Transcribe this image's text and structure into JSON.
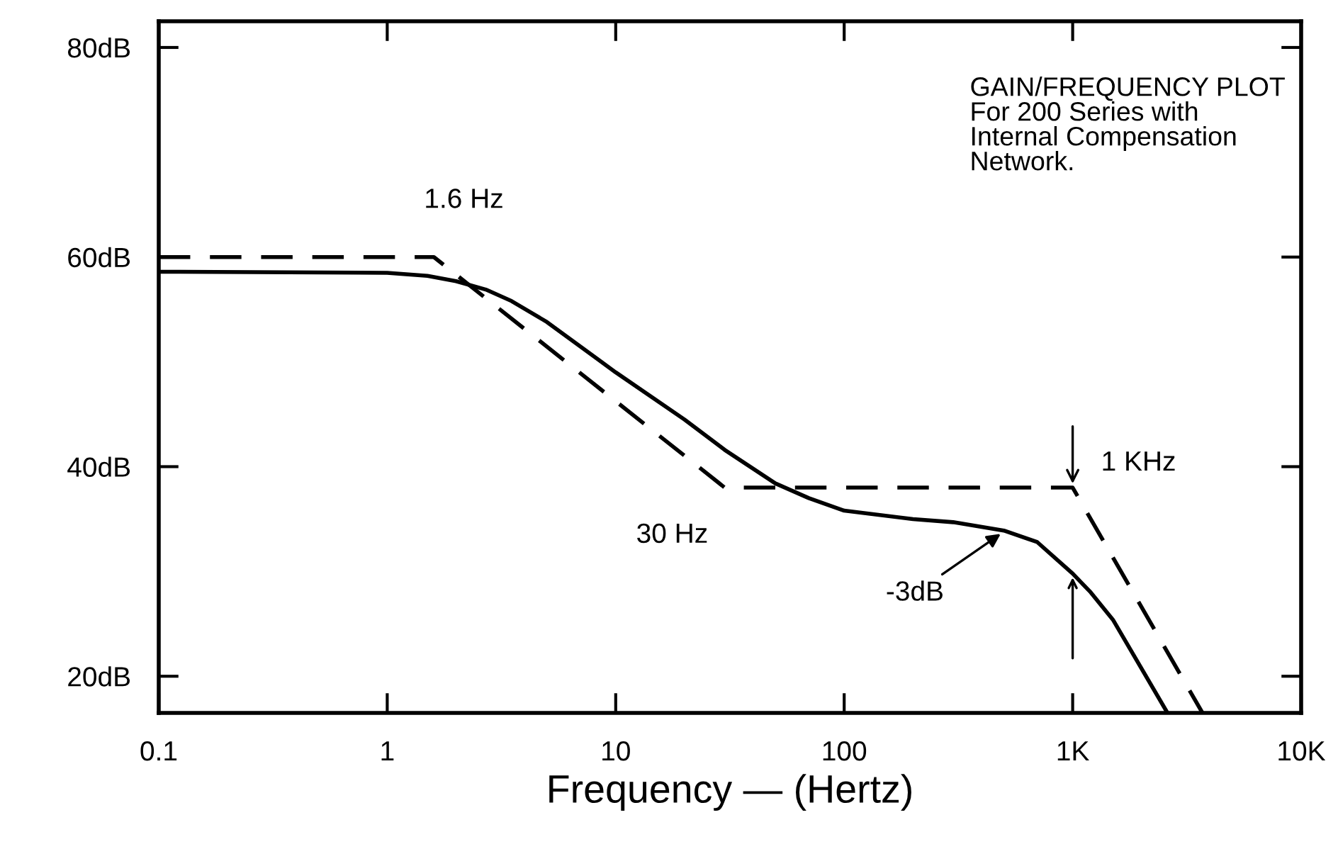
{
  "chart_data": {
    "type": "line",
    "xlabel": "Frequency — (Hertz)",
    "log": "x",
    "grid": false,
    "xlim": [
      0.1,
      10000
    ],
    "ylim": [
      16.5,
      82.5
    ],
    "xticks": [
      0.1,
      1,
      10,
      100,
      {
        "value": 1000,
        "label": "1K"
      },
      {
        "value": 10000,
        "label": "10K"
      }
    ],
    "yticks": [
      {
        "value": 20,
        "label": "20dB"
      },
      {
        "value": 40,
        "label": "40dB"
      },
      {
        "value": 60,
        "label": "60dB"
      },
      {
        "value": 80,
        "label": "80dB"
      }
    ],
    "series": [
      {
        "color": "#000000",
        "line_style": "dashed",
        "x": [
          0.1,
          1.6,
          30,
          1000,
          3700
        ],
        "values": [
          60,
          60,
          38,
          38,
          16.5
        ]
      },
      {
        "color": "#000000",
        "line_style": "solid",
        "x": [
          0.1,
          1,
          1.5,
          2,
          2.7,
          3.5,
          5,
          10,
          20,
          30,
          50,
          70,
          100,
          200,
          300,
          500,
          700,
          1000,
          1200,
          1500,
          2600
        ],
        "values": [
          58.6,
          58.5,
          58.2,
          57.7,
          56.9,
          55.8,
          53.8,
          49,
          44.5,
          41.6,
          38.4,
          37,
          35.8,
          35,
          34.7,
          33.9,
          32.8,
          29.8,
          28,
          25.4,
          16.5
        ]
      }
    ],
    "annotations": [
      "GAIN/FREQUENCY PLOT\nFor 200 Series with\nInternal Compensation\nNetwork.",
      {
        "text": "1.6 Hz",
        "x": 1.6,
        "y": 60
      },
      {
        "text": "30 Hz",
        "x": 30,
        "y": 38
      },
      {
        "text": "1 KHz",
        "x": 1000,
        "y": 38
      },
      {
        "text": "-3dB",
        "x": 500,
        "y": 33.8
      }
    ]
  }
}
